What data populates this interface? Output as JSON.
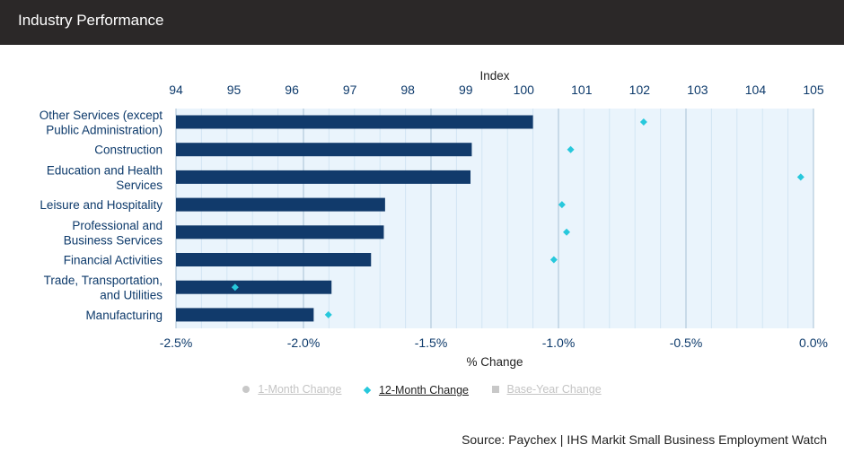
{
  "header": {
    "title": "Industry Performance"
  },
  "chart_data": {
    "type": "bar",
    "orientation": "horizontal",
    "categories": [
      "Other Services (except Public Administration)",
      "Construction",
      "Education and Health Services",
      "Leisure and Hospitality",
      "Professional and Business Services",
      "Financial Activities",
      "Trade, Transportation, and Utilities",
      "Manufacturing"
    ],
    "series": [
      {
        "name": "12-Month Change",
        "type": "bar",
        "axis": "bottom",
        "values": [
          -1.1,
          -1.34,
          -1.345,
          -1.68,
          -1.685,
          -1.735,
          -1.89,
          -1.96
        ]
      },
      {
        "name": "12-Month Change",
        "type": "marker",
        "axis": "top",
        "values": [
          102.07,
          100.81,
          104.78,
          100.66,
          100.74,
          100.52,
          95.02,
          96.63
        ]
      }
    ],
    "top_axis": {
      "label": "Index",
      "range": [
        94,
        105
      ],
      "ticks": [
        "94",
        "95",
        "96",
        "97",
        "98",
        "99",
        "100",
        "101",
        "102",
        "103",
        "104",
        "105"
      ]
    },
    "bottom_axis": {
      "label": "% Change",
      "range": [
        -2.5,
        0
      ],
      "ticks": [
        "-2.5%",
        "-2.0%",
        "-1.5%",
        "-1.0%",
        "-0.5%",
        "0.0%"
      ]
    },
    "grid": true,
    "colors": {
      "bar": "#113a6b",
      "marker": "#27c8dc",
      "plot_bg": "#eaf4fc",
      "grid_major": "#a5bfd3",
      "grid_minor": "#d2e5f3",
      "axis_text": "#0d3a6b"
    }
  },
  "legend": [
    {
      "label": "1-Month Change",
      "marker": "circle",
      "active": false
    },
    {
      "label": "12-Month Change",
      "marker": "diamond",
      "active": true
    },
    {
      "label": "Base-Year Change",
      "marker": "square",
      "active": false
    }
  ],
  "source": "Source: Paychex | IHS Markit Small Business Employment Watch"
}
